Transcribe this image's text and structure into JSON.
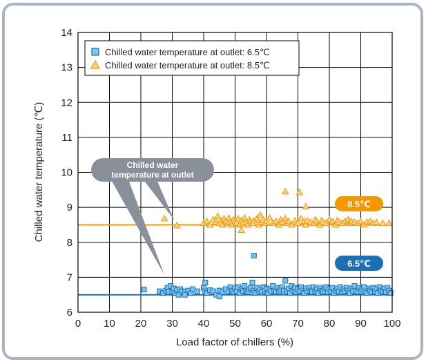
{
  "chart_data": {
    "type": "scatter",
    "title": "",
    "xlabel": "Load factor of chillers (%)",
    "ylabel": "Chilled water temperature (℃)",
    "xlim": [
      0,
      100
    ],
    "ylim": [
      6,
      14
    ],
    "x_ticks": [
      "0",
      "10",
      "20",
      "30",
      "40",
      "50",
      "60",
      "70",
      "80",
      "90",
      "100"
    ],
    "y_ticks": [
      "6",
      "7",
      "8",
      "9",
      "10",
      "11",
      "12",
      "13",
      "14"
    ],
    "grid": true,
    "legend_position": "top-left",
    "colors": {
      "series_6_5": "#1a6fb5",
      "series_6_5_fill": "#7cc4ea",
      "series_8_5": "#f39800",
      "series_8_5_fill": "#f8d48a",
      "callout": "#8a9099",
      "frame": "#a8b4c8"
    },
    "series": [
      {
        "name": "Chilled water temperature at outlet: 6.5℃",
        "marker": "square",
        "setpoint": 6.5,
        "setpoint_label": "6.5℃",
        "points": [
          [
            21,
            6.65
          ],
          [
            26,
            6.6
          ],
          [
            27,
            6.55
          ],
          [
            28,
            6.62
          ],
          [
            28.5,
            6.7
          ],
          [
            29,
            6.58
          ],
          [
            29.5,
            6.75
          ],
          [
            30,
            6.6
          ],
          [
            30.5,
            6.68
          ],
          [
            31,
            6.55
          ],
          [
            31.5,
            6.63
          ],
          [
            32,
            6.5
          ],
          [
            32.5,
            6.66
          ],
          [
            33,
            6.6
          ],
          [
            34,
            6.58
          ],
          [
            35,
            6.62
          ],
          [
            36,
            6.55
          ],
          [
            36.5,
            6.66
          ],
          [
            38,
            6.6
          ],
          [
            40,
            6.7
          ],
          [
            40.5,
            6.6
          ],
          [
            41,
            6.55
          ],
          [
            42,
            6.63
          ],
          [
            43,
            6.6
          ],
          [
            44,
            6.5
          ],
          [
            45,
            6.62
          ],
          [
            46,
            6.58
          ],
          [
            47,
            6.66
          ],
          [
            48,
            6.6
          ],
          [
            48.5,
            6.72
          ],
          [
            49,
            6.62
          ],
          [
            49.5,
            6.58
          ],
          [
            50,
            6.68
          ],
          [
            50.5,
            6.6
          ],
          [
            51,
            6.72
          ],
          [
            51.5,
            6.55
          ],
          [
            52,
            6.66
          ],
          [
            52.5,
            6.6
          ],
          [
            53,
            6.75
          ],
          [
            53.5,
            6.62
          ],
          [
            54,
            6.58
          ],
          [
            54.5,
            6.66
          ],
          [
            55,
            6.7
          ],
          [
            55.5,
            6.85
          ],
          [
            56,
            6.62
          ],
          [
            56.5,
            6.55
          ],
          [
            57,
            6.7
          ],
          [
            57.5,
            6.6
          ],
          [
            58,
            6.65
          ],
          [
            58.5,
            6.58
          ],
          [
            59,
            6.72
          ],
          [
            59.5,
            6.62
          ],
          [
            60,
            6.68
          ],
          [
            60.5,
            6.55
          ],
          [
            61,
            6.66
          ],
          [
            61.5,
            6.6
          ],
          [
            62,
            6.75
          ],
          [
            62.5,
            6.62
          ],
          [
            63,
            6.58
          ],
          [
            63.5,
            6.7
          ],
          [
            64,
            6.6
          ],
          [
            64.5,
            6.66
          ],
          [
            65,
            6.72
          ],
          [
            65.5,
            6.62
          ],
          [
            66,
            6.9
          ],
          [
            66.5,
            6.6
          ],
          [
            67,
            6.68
          ],
          [
            67.5,
            6.55
          ],
          [
            68,
            6.75
          ],
          [
            68.5,
            6.62
          ],
          [
            69,
            6.7
          ],
          [
            69.5,
            6.58
          ],
          [
            70,
            6.66
          ],
          [
            70.5,
            6.6
          ],
          [
            71,
            6.72
          ],
          [
            71.5,
            6.62
          ],
          [
            72,
            6.55
          ],
          [
            72.5,
            6.68
          ],
          [
            73,
            6.6
          ],
          [
            73.5,
            6.7
          ],
          [
            74,
            6.62
          ],
          [
            74.5,
            6.58
          ],
          [
            75,
            6.72
          ],
          [
            75.5,
            6.6
          ],
          [
            76,
            6.66
          ],
          [
            76.5,
            6.55
          ],
          [
            77,
            6.7
          ],
          [
            77.5,
            6.62
          ],
          [
            78,
            6.6
          ],
          [
            78.5,
            6.68
          ],
          [
            79,
            6.72
          ],
          [
            79.5,
            6.58
          ],
          [
            80,
            6.66
          ],
          [
            80.5,
            6.6
          ],
          [
            81,
            6.7
          ],
          [
            81.5,
            6.55
          ],
          [
            82,
            6.62
          ],
          [
            82.5,
            6.68
          ],
          [
            83,
            6.6
          ],
          [
            83.5,
            6.72
          ],
          [
            84,
            6.58
          ],
          [
            84.5,
            6.66
          ],
          [
            85,
            6.6
          ],
          [
            85.5,
            6.7
          ],
          [
            86,
            6.62
          ],
          [
            86.5,
            6.55
          ],
          [
            87,
            6.68
          ],
          [
            87.5,
            6.6
          ],
          [
            88,
            6.75
          ],
          [
            88.5,
            6.62
          ],
          [
            89,
            6.58
          ],
          [
            89.5,
            6.7
          ],
          [
            90,
            6.6
          ],
          [
            90.5,
            6.66
          ],
          [
            91,
            6.72
          ],
          [
            91.5,
            6.6
          ],
          [
            92,
            6.55
          ],
          [
            92.5,
            6.68
          ],
          [
            93,
            6.62
          ],
          [
            93.5,
            6.58
          ],
          [
            94,
            6.7
          ],
          [
            94.5,
            6.6
          ],
          [
            95,
            6.66
          ],
          [
            95.5,
            6.55
          ],
          [
            96,
            6.72
          ],
          [
            96.5,
            6.62
          ],
          [
            97,
            6.6
          ],
          [
            97.5,
            6.68
          ],
          [
            98,
            6.58
          ],
          [
            98.5,
            6.7
          ],
          [
            99,
            6.62
          ],
          [
            99.5,
            6.55
          ],
          [
            56,
            7.62
          ],
          [
            40.5,
            6.85
          ],
          [
            45,
            6.45
          ],
          [
            34,
            6.5
          ]
        ]
      },
      {
        "name": "Chilled water temperature at outlet: 8.5℃",
        "marker": "triangle",
        "setpoint": 8.5,
        "setpoint_label": "8.5℃",
        "points": [
          [
            27.5,
            8.68
          ],
          [
            31.5,
            8.48
          ],
          [
            40,
            8.55
          ],
          [
            41,
            8.6
          ],
          [
            42,
            8.5
          ],
          [
            43,
            8.65
          ],
          [
            44,
            8.58
          ],
          [
            44.5,
            8.75
          ],
          [
            45,
            8.55
          ],
          [
            45.5,
            8.62
          ],
          [
            46,
            8.5
          ],
          [
            46.5,
            8.68
          ],
          [
            47,
            8.6
          ],
          [
            47.5,
            8.55
          ],
          [
            48,
            8.7
          ],
          [
            48.5,
            8.58
          ],
          [
            49,
            8.5
          ],
          [
            49.5,
            8.65
          ],
          [
            50,
            8.6
          ],
          [
            50.5,
            8.55
          ],
          [
            51,
            8.68
          ],
          [
            51.5,
            8.5
          ],
          [
            52,
            8.62
          ],
          [
            52.5,
            8.55
          ],
          [
            53,
            8.7
          ],
          [
            53.5,
            8.58
          ],
          [
            54,
            8.5
          ],
          [
            54.5,
            8.65
          ],
          [
            55,
            8.6
          ],
          [
            55.5,
            8.55
          ],
          [
            56,
            8.62
          ],
          [
            57,
            8.68
          ],
          [
            57.5,
            8.5
          ],
          [
            58,
            8.78
          ],
          [
            58.5,
            8.58
          ],
          [
            59,
            8.65
          ],
          [
            59.5,
            8.55
          ],
          [
            60,
            8.62
          ],
          [
            61,
            8.7
          ],
          [
            62,
            8.55
          ],
          [
            63,
            8.6
          ],
          [
            64,
            8.5
          ],
          [
            64.5,
            8.65
          ],
          [
            65,
            8.58
          ],
          [
            66,
            8.68
          ],
          [
            66.5,
            8.55
          ],
          [
            67,
            8.6
          ],
          [
            68,
            8.5
          ],
          [
            69,
            8.62
          ],
          [
            70,
            8.55
          ],
          [
            71,
            8.68
          ],
          [
            72,
            8.6
          ],
          [
            72.5,
            8.5
          ],
          [
            73,
            8.62
          ],
          [
            74,
            8.58
          ],
          [
            75,
            8.55
          ],
          [
            75.5,
            8.65
          ],
          [
            76,
            8.6
          ],
          [
            77,
            8.5
          ],
          [
            77.5,
            8.62
          ],
          [
            78,
            8.58
          ],
          [
            79,
            8.55
          ],
          [
            80,
            8.65
          ],
          [
            81,
            8.6
          ],
          [
            82,
            8.5
          ],
          [
            82.5,
            8.62
          ],
          [
            83,
            8.58
          ],
          [
            84,
            8.55
          ],
          [
            85,
            8.6
          ],
          [
            86,
            8.65
          ],
          [
            86.5,
            8.55
          ],
          [
            87,
            8.6
          ],
          [
            88,
            8.58
          ],
          [
            89,
            8.55
          ],
          [
            90,
            8.6
          ],
          [
            91,
            8.5
          ],
          [
            92,
            8.58
          ],
          [
            93,
            8.6
          ],
          [
            94,
            8.55
          ],
          [
            95,
            8.58
          ],
          [
            97,
            8.55
          ],
          [
            99,
            8.55
          ],
          [
            52,
            8.35
          ],
          [
            66,
            9.45
          ],
          [
            70.5,
            9.43
          ],
          [
            72.5,
            9.02
          ]
        ]
      }
    ],
    "callout_text": [
      "Chilled water",
      "temperature at outlet"
    ]
  }
}
